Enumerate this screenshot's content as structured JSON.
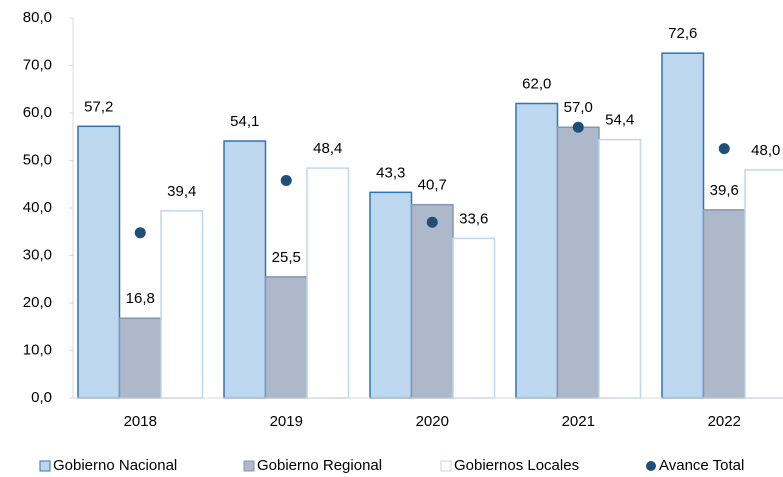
{
  "chart_data": {
    "type": "bar",
    "categories": [
      "2018",
      "2019",
      "2020",
      "2021",
      "2022"
    ],
    "series": [
      {
        "name": "Gobierno Nacional",
        "type": "bar",
        "color": "#bdd7ee",
        "stroke": "#2e75b6",
        "values": [
          57.2,
          54.1,
          43.3,
          62.0,
          72.6
        ],
        "value_labels": [
          "57,2",
          "54,1",
          "43,3",
          "62,0",
          "72,6"
        ]
      },
      {
        "name": "Gobierno Regional",
        "type": "bar",
        "color": "#adb9ca",
        "stroke": "#8497b0",
        "values": [
          16.8,
          25.5,
          40.7,
          57.0,
          39.6
        ],
        "value_labels": [
          "16,8",
          "25,5",
          "40,7",
          "57,0",
          "39,6"
        ]
      },
      {
        "name": "Gobiernos Locales",
        "type": "bar",
        "color": "#ffffff",
        "stroke": "#bdd7ee",
        "values": [
          39.4,
          48.4,
          33.6,
          54.4,
          48.0
        ],
        "value_labels": [
          "39,4",
          "48,4",
          "33,6",
          "54,4",
          "48,0"
        ]
      },
      {
        "name": "Avance Total",
        "type": "dot",
        "color": "#1f4e79",
        "values": [
          34.8,
          45.8,
          37.0,
          57.0,
          52.5
        ]
      }
    ],
    "ylim": [
      0,
      80
    ],
    "yticks": [
      {
        "value": 0,
        "label": "0,0"
      },
      {
        "value": 10,
        "label": "10,0"
      },
      {
        "value": 20,
        "label": "20,0"
      },
      {
        "value": 30,
        "label": "30,0"
      },
      {
        "value": 40,
        "label": "40,0"
      },
      {
        "value": 50,
        "label": "50,0"
      },
      {
        "value": 60,
        "label": "60,0"
      },
      {
        "value": 70,
        "label": "70,0"
      },
      {
        "value": 80,
        "label": "80,0"
      }
    ],
    "legend": "bottom"
  }
}
